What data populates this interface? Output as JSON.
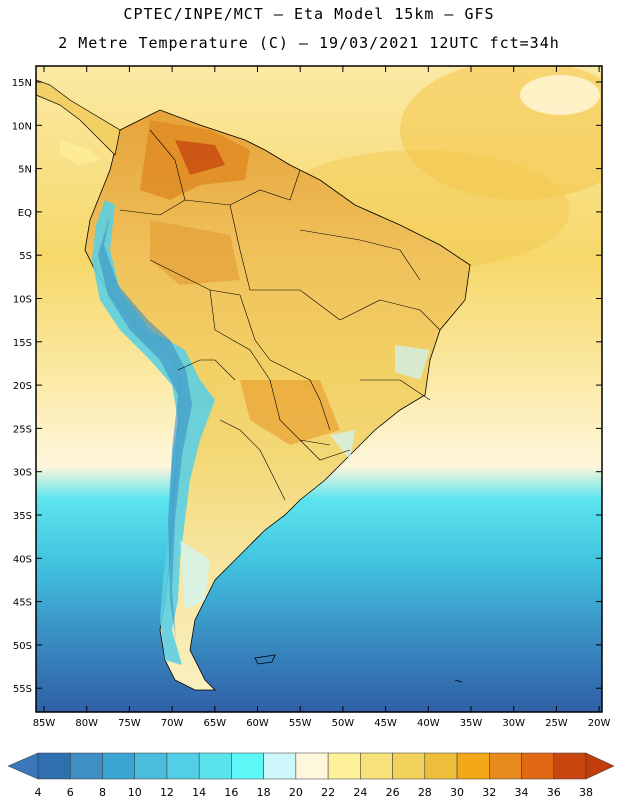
{
  "title_line1": "CPTEC/INPE/MCT –  Eta Model 15km – GFS",
  "title_line2": "2 Metre Temperature (C) – 19/03/2021 12UTC fct=34h",
  "lat_labels": [
    "15N",
    "10N",
    "5N",
    "EQ",
    "5S",
    "10S",
    "15S",
    "20S",
    "25S",
    "30S",
    "35S",
    "40S",
    "45S",
    "50S",
    "55S"
  ],
  "lon_labels": [
    "85W",
    "80W",
    "75W",
    "70W",
    "65W",
    "60W",
    "55W",
    "50W",
    "45W",
    "40W",
    "35W",
    "30W",
    "25W",
    "20W"
  ],
  "colorbar": {
    "labels": [
      "4",
      "6",
      "8",
      "10",
      "12",
      "14",
      "16",
      "18",
      "20",
      "22",
      "24",
      "26",
      "28",
      "30",
      "32",
      "34",
      "36",
      "38"
    ],
    "colors": [
      "#3a78b9",
      "#2f6faf",
      "#3f8fc4",
      "#3aa5d2",
      "#4bbcdc",
      "#52cfe4",
      "#5ce4ee",
      "#5ef8f8",
      "#cdf7fb",
      "#fff7dc",
      "#fff09a",
      "#f7e27a",
      "#f2d25d",
      "#ecbe3b",
      "#f3a819",
      "#e88a1e",
      "#e06814",
      "#c94610",
      "#c33c0b"
    ]
  }
}
